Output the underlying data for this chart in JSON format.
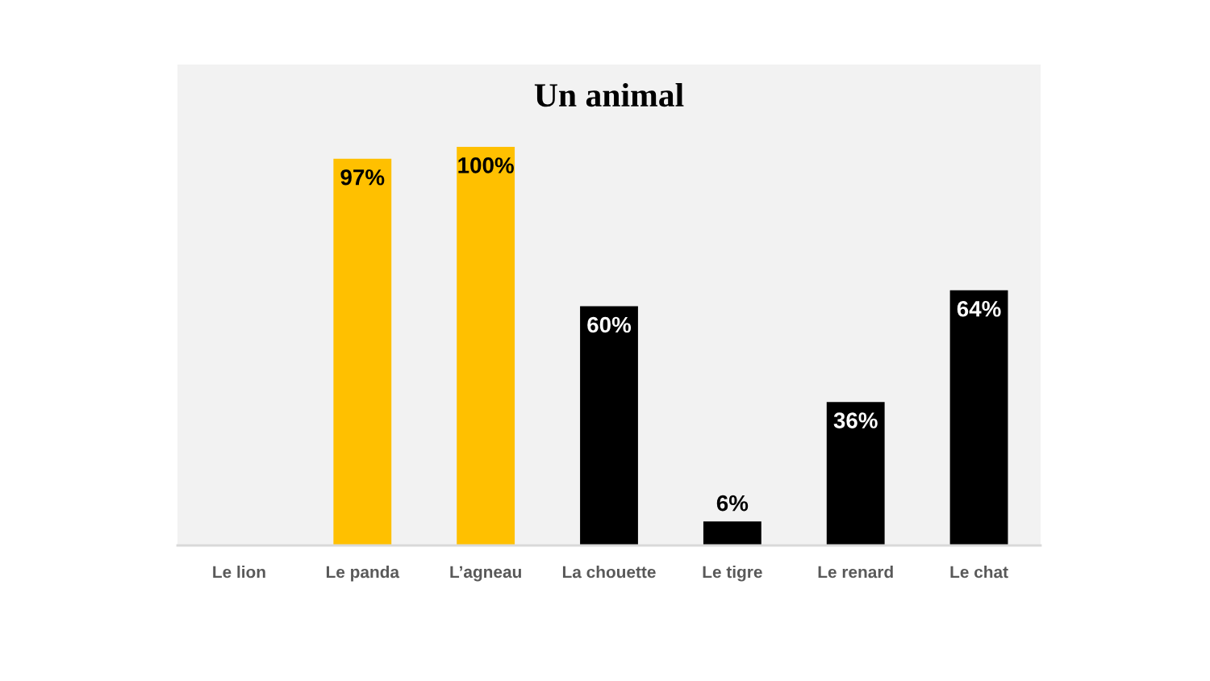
{
  "chart_data": {
    "type": "bar",
    "title": "Un animal",
    "categories": [
      "Le lion",
      "Le panda",
      "L’agneau",
      "La chouette",
      "Le tigre",
      "Le renard",
      "Le chat"
    ],
    "values": [
      null,
      97,
      100,
      60,
      6,
      36,
      64
    ],
    "colors": [
      "#000000",
      "#ffc000",
      "#ffc000",
      "#000000",
      "#000000",
      "#000000",
      "#000000"
    ],
    "value_labels": [
      null,
      "97%",
      "100%",
      "60%",
      "6%",
      "36%",
      "64%"
    ],
    "grid": false,
    "legend": false,
    "tick_labels": "x"
  }
}
